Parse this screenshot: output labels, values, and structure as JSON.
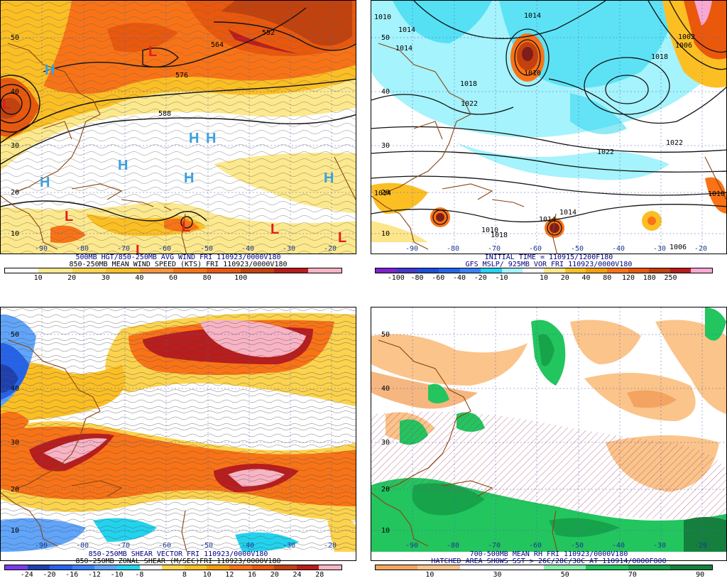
{
  "panels": [
    {
      "id": "tl",
      "caption1": "500MB HGT/850-250MB AVG WIND FRI 110923/0000V180",
      "caption2": "850-250MB MEAN WIND SPEED (KTS) FRI 110923/0000V180",
      "caption_colors": [
        "#000080",
        "#000000"
      ],
      "colors": [
        "#ffffff",
        "#fde98d",
        "#fcd34d",
        "#fbbf24",
        "#fb923c",
        "#f97316",
        "#ea580c",
        "#c2410c",
        "#b91c1c",
        "#f8b4c4"
      ],
      "ticks": [
        "10",
        "20",
        "30",
        "40",
        "60",
        "80",
        "100"
      ],
      "lat_labels": [
        "50",
        "40",
        "30",
        "20",
        "10"
      ],
      "lon_labels": [
        "-90",
        "-80",
        "-70",
        "-60",
        "-50",
        "-40",
        "-30",
        "-20"
      ],
      "contour_labels": [
        "552",
        "564",
        "576",
        "588"
      ],
      "markers": [
        "L",
        "H",
        "L",
        "H",
        "H",
        "H",
        "H",
        "H",
        "L",
        "L",
        "L",
        "L",
        "L",
        "H"
      ]
    },
    {
      "id": "tr",
      "caption1": "INITIAL TIME = 110915/1200F180",
      "caption2": "GFS MSLP/ 925MB VOR FRI 110923/0000V180",
      "caption_colors": [
        "#000080",
        "#000080"
      ],
      "colors": [
        "#7e22ce",
        "#4338ca",
        "#1d4ed8",
        "#2563eb",
        "#3b82f6",
        "#22d3ee",
        "#a5f3fc",
        "#ffffff",
        "#fde68a",
        "#fbbf24",
        "#f59e0b",
        "#f97316",
        "#ea580c",
        "#c2410c",
        "#b91c1c",
        "#f9a8d4"
      ],
      "ticks": [
        "-100",
        "-80",
        "-60",
        "-40",
        "-20",
        "-10",
        "10",
        "20",
        "40",
        "80",
        "120",
        "180",
        "250"
      ],
      "lat_labels": [
        "50",
        "40",
        "30",
        "20",
        "10"
      ],
      "lon_labels": [
        "-90",
        "-80",
        "-70",
        "-60",
        "-50",
        "-40",
        "-30",
        "-20"
      ],
      "contour_labels": [
        "1010",
        "1014",
        "1014",
        "1018",
        "1022",
        "1022",
        "1022",
        "1014",
        "1010",
        "1014",
        "1018",
        "1014",
        "1010",
        "1006",
        "1002",
        "1018",
        "1014",
        "1006",
        "1010"
      ]
    },
    {
      "id": "bl",
      "caption1": "850-250MB SHEAR VECTOR FRI 110923/0000V180",
      "caption2": "850-250MB ZONAL SHEAR (M/SEC)FRI 110923/0000V180",
      "caption_colors": [
        "#000080",
        "#000000"
      ],
      "colors": [
        "#7c3aed",
        "#1e40af",
        "#2563eb",
        "#3b82f6",
        "#60a5fa",
        "#22d3ee",
        "#ffffff",
        "#fcd34d",
        "#fbbf24",
        "#f59e0b",
        "#f97316",
        "#ea580c",
        "#c2410c",
        "#b91c1c",
        "#f8b4c4"
      ],
      "ticks": [
        "-24",
        "-20",
        "-16",
        "-12",
        "-10",
        "-8",
        "8",
        "10",
        "12",
        "16",
        "20",
        "24",
        "28"
      ],
      "lat_labels": [
        "50",
        "40",
        "30",
        "20",
        "10"
      ],
      "lon_labels": [
        "-90",
        "-80",
        "-70",
        "-60",
        "-50",
        "-40",
        "-30",
        "-20"
      ]
    },
    {
      "id": "br",
      "caption1": "700-500MB MEAN RH FRI 110923/0000V180",
      "caption2": "HATCHED AREA SHOWS SST > 26C/28C/30C AT 110914/0000F000",
      "caption_colors": [
        "#000080",
        "#000080"
      ],
      "colors": [
        "#f4a460",
        "#fbc48a",
        "#ffffff",
        "#ffffff",
        "#86efac",
        "#22c55e",
        "#16a34a",
        "#15803d"
      ],
      "ticks": [
        "10",
        "30",
        "50",
        "70",
        "90"
      ],
      "lat_labels": [
        "50",
        "40",
        "30",
        "20",
        "10"
      ],
      "lon_labels": [
        "-90",
        "-80",
        "-70",
        "-60",
        "-50",
        "-40",
        "-30",
        "-20"
      ]
    }
  ]
}
